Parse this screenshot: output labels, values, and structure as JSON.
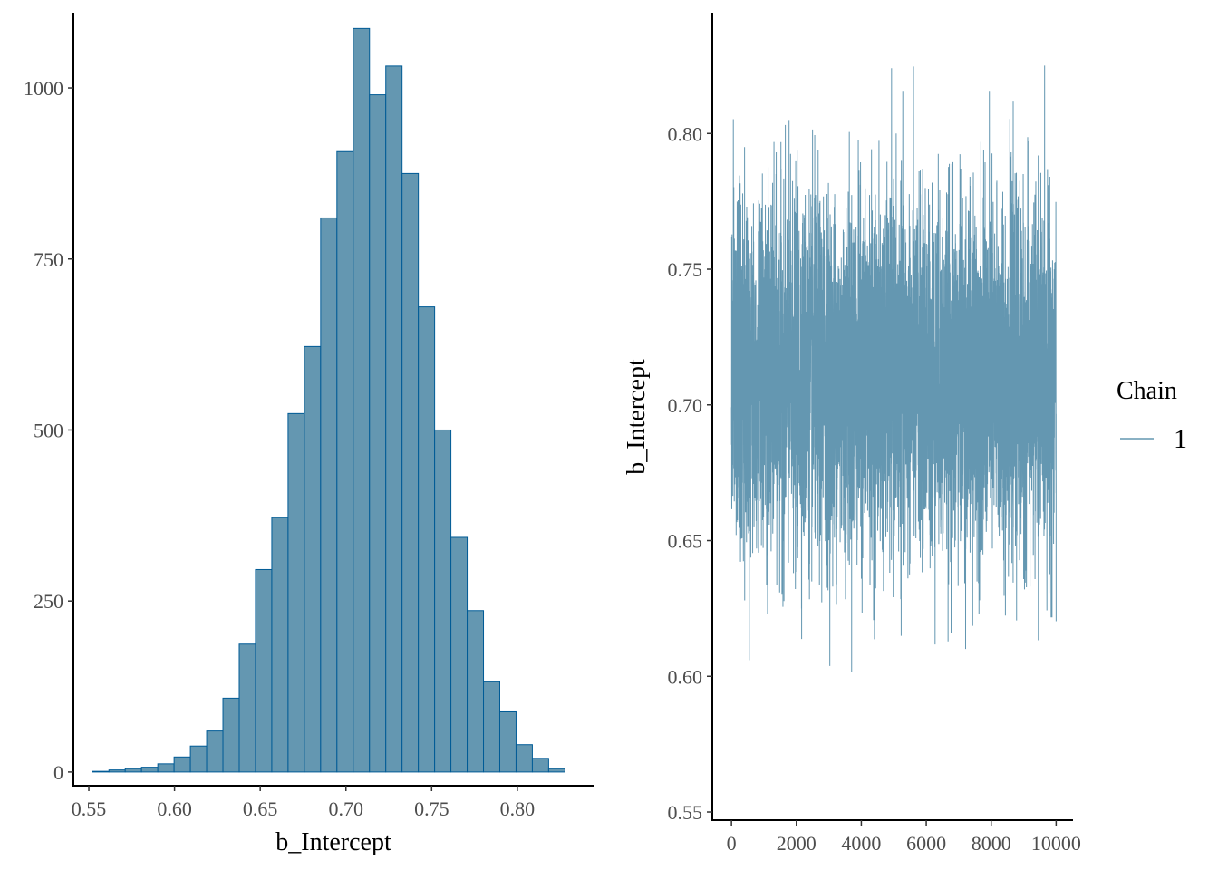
{
  "colors": {
    "bar_fill": "#6497b1",
    "bar_stroke": "#005b96",
    "trace": "#6497b1",
    "axis": "#000000",
    "tick_text": "#4d4d4d"
  },
  "chart_data": [
    {
      "type": "bar",
      "title": "",
      "xlabel": "b_Intercept",
      "ylabel": "",
      "xlim": [
        0.541,
        0.845
      ],
      "ylim": [
        -20,
        1110
      ],
      "xticks": [
        0.55,
        0.6,
        0.65,
        0.7,
        0.75,
        0.8
      ],
      "xtick_labels": [
        "0.55",
        "0.60",
        "0.65",
        "0.70",
        "0.75",
        "0.80"
      ],
      "yticks": [
        0,
        250,
        500,
        750,
        1000
      ],
      "ytick_labels": [
        "0",
        "250",
        "500",
        "750",
        "1000"
      ],
      "bin_width": 0.0095,
      "bin_centers": [
        0.557,
        0.5665,
        0.576,
        0.5855,
        0.595,
        0.6045,
        0.614,
        0.6235,
        0.633,
        0.6425,
        0.652,
        0.6615,
        0.671,
        0.6805,
        0.69,
        0.6995,
        0.709,
        0.7185,
        0.728,
        0.7375,
        0.747,
        0.7565,
        0.766,
        0.7755,
        0.785,
        0.7945,
        0.804,
        0.8135,
        0.823
      ],
      "values": [
        1,
        3,
        5,
        7,
        12,
        22,
        38,
        60,
        108,
        187,
        296,
        372,
        524,
        622,
        810,
        907,
        1087,
        990,
        1032,
        875,
        680,
        500,
        343,
        236,
        132,
        88,
        40,
        20,
        5
      ]
    },
    {
      "type": "line",
      "title": "",
      "xlabel": "",
      "ylabel": "b_Intercept",
      "xlim": [
        -590,
        10520
      ],
      "ylim": [
        0.547,
        0.8445
      ],
      "xticks": [
        0,
        2000,
        4000,
        6000,
        8000,
        10000
      ],
      "xtick_labels": [
        "0",
        "2000",
        "4000",
        "6000",
        "8000",
        "10000"
      ],
      "yticks": [
        0.55,
        0.6,
        0.65,
        0.7,
        0.75,
        0.8
      ],
      "ytick_labels": [
        "0.55",
        "0.60",
        "0.65",
        "0.70",
        "0.75",
        "0.80"
      ],
      "series": [
        {
          "name": "1",
          "n_iterations": 10000,
          "mean": 0.71,
          "sd": 0.032,
          "min": 0.56,
          "max": 0.825
        }
      ],
      "legend": {
        "title": "Chain",
        "entries": [
          "1"
        ],
        "position": "right"
      }
    }
  ]
}
